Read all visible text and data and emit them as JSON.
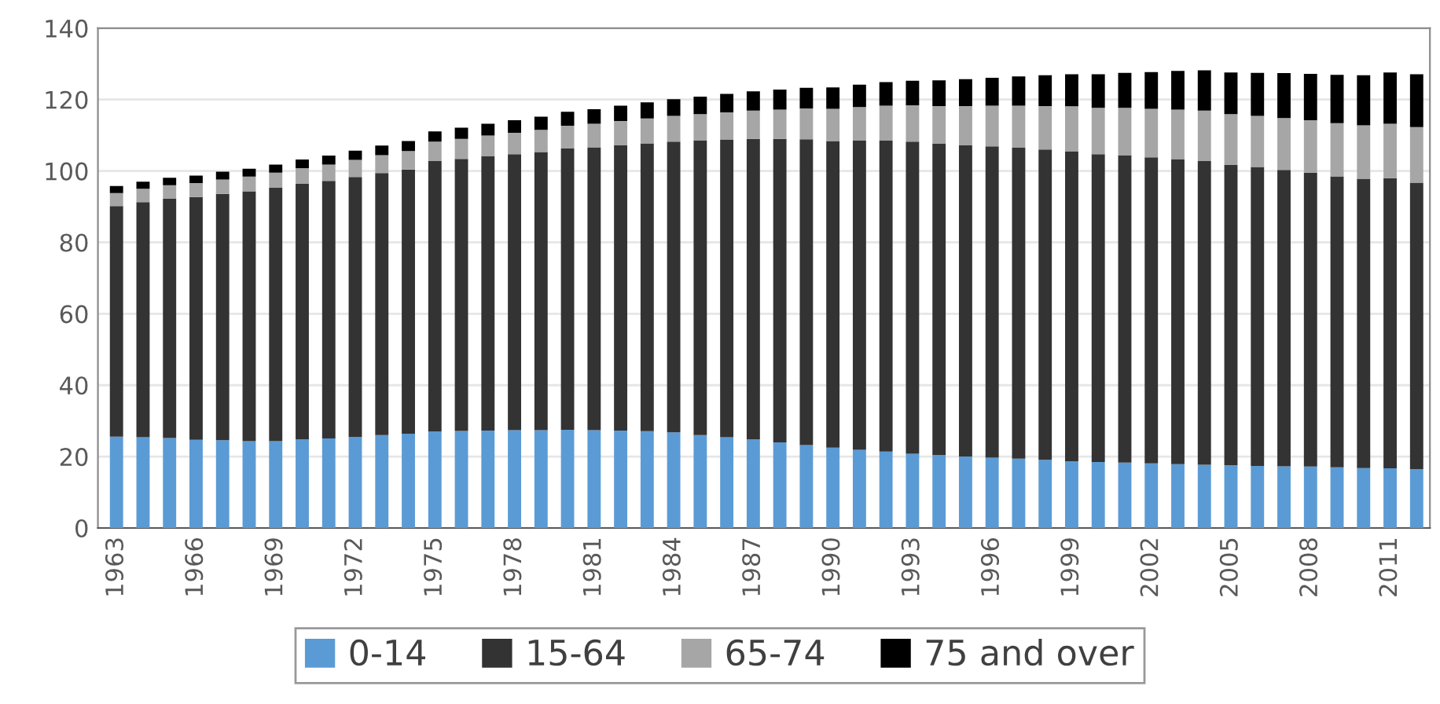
{
  "chart_data": {
    "type": "bar",
    "stacked": true,
    "categories": [
      "1963",
      null,
      null,
      "1966",
      null,
      null,
      "1969",
      null,
      null,
      "1972",
      null,
      null,
      "1975",
      null,
      null,
      "1978",
      null,
      null,
      "1981",
      null,
      null,
      "1984",
      null,
      null,
      "1987",
      null,
      null,
      "1990",
      null,
      null,
      "1993",
      null,
      null,
      "1996",
      null,
      null,
      "1999",
      null,
      null,
      "2002",
      null,
      null,
      "2005",
      null,
      null,
      "2008",
      null,
      null,
      "2011",
      null
    ],
    "series": [
      {
        "name": "0-14",
        "color": "#5b9bd5",
        "values": [
          25.6,
          25.4,
          25.2,
          24.7,
          24.6,
          24.3,
          24.3,
          24.8,
          25.1,
          25.5,
          26.0,
          26.4,
          27.0,
          27.2,
          27.3,
          27.4,
          27.4,
          27.5,
          27.4,
          27.3,
          27.1,
          26.8,
          26.0,
          25.4,
          24.8,
          24.0,
          23.2,
          22.5,
          21.9,
          21.4,
          20.8,
          20.4,
          20.0,
          19.7,
          19.4,
          19.1,
          18.7,
          18.5,
          18.3,
          18.1,
          17.9,
          17.7,
          17.6,
          17.4,
          17.3,
          17.2,
          17.0,
          16.8,
          16.7,
          16.5
        ]
      },
      {
        "name": "15-64",
        "color": "#333333",
        "values": [
          64.6,
          65.9,
          67.0,
          68.0,
          69.0,
          70.0,
          71.0,
          71.6,
          72.1,
          72.8,
          73.4,
          74.0,
          75.8,
          76.2,
          76.8,
          77.3,
          77.9,
          78.8,
          79.2,
          79.9,
          80.6,
          81.4,
          82.5,
          83.4,
          84.2,
          85.0,
          85.7,
          85.9,
          86.6,
          87.1,
          87.4,
          87.2,
          87.2,
          87.2,
          87.1,
          86.9,
          86.8,
          86.2,
          86.1,
          85.7,
          85.4,
          85.1,
          84.1,
          83.7,
          83.0,
          82.3,
          81.5,
          81.0,
          81.3,
          80.2
        ]
      },
      {
        "name": "65-74",
        "color": "#a6a6a6",
        "values": [
          3.6,
          3.7,
          3.8,
          3.9,
          4.0,
          4.1,
          4.2,
          4.4,
          4.6,
          4.8,
          5.0,
          5.2,
          5.4,
          5.6,
          5.8,
          6.0,
          6.2,
          6.4,
          6.6,
          6.8,
          7.0,
          7.2,
          7.4,
          7.6,
          7.9,
          8.2,
          8.6,
          9.0,
          9.4,
          9.8,
          10.2,
          10.6,
          11.0,
          11.4,
          11.8,
          12.2,
          12.6,
          13.0,
          13.3,
          13.6,
          13.9,
          14.1,
          14.2,
          14.3,
          14.5,
          14.7,
          14.9,
          15.0,
          15.2,
          15.6
        ]
      },
      {
        "name": "75 and over",
        "color": "#000000",
        "values": [
          2.0,
          2.0,
          2.1,
          2.1,
          2.2,
          2.2,
          2.3,
          2.4,
          2.5,
          2.6,
          2.7,
          2.8,
          2.9,
          3.1,
          3.3,
          3.5,
          3.7,
          3.9,
          4.1,
          4.3,
          4.5,
          4.7,
          4.9,
          5.2,
          5.4,
          5.6,
          5.8,
          6.0,
          6.3,
          6.6,
          6.9,
          7.2,
          7.5,
          7.8,
          8.2,
          8.6,
          9.0,
          9.4,
          9.8,
          10.3,
          10.8,
          11.3,
          11.7,
          12.1,
          12.6,
          13.0,
          13.5,
          14.0,
          14.4,
          14.8
        ]
      }
    ],
    "ylim": [
      0,
      140
    ],
    "yticks": [
      0,
      20,
      40,
      60,
      80,
      100,
      120,
      140
    ],
    "grid": "y",
    "legend": "bottom"
  }
}
